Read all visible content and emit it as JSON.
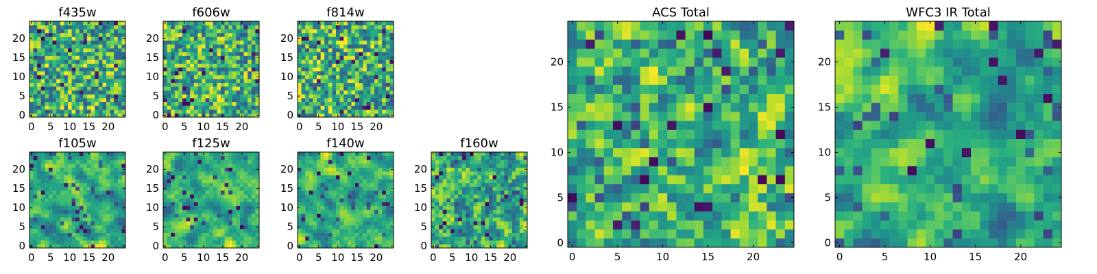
{
  "figure": {
    "background": "#ffffff"
  },
  "chart_data": [
    {
      "id": "f435w",
      "type": "heatmap",
      "title": "f435w",
      "grid_size": [
        25,
        25
      ],
      "xlim": [
        0,
        24
      ],
      "ylim": [
        0,
        24
      ],
      "xticks": [
        0,
        5,
        10,
        15,
        20
      ],
      "yticks": [
        0,
        5,
        10,
        15,
        20
      ],
      "origin": "lower",
      "colormap": "viridis",
      "value_range": [
        0,
        1
      ],
      "seed": 435,
      "smoothness": 0.05,
      "values": []
    },
    {
      "id": "f606w",
      "type": "heatmap",
      "title": "f606w",
      "grid_size": [
        25,
        25
      ],
      "xlim": [
        0,
        24
      ],
      "ylim": [
        0,
        24
      ],
      "xticks": [
        0,
        5,
        10,
        15,
        20
      ],
      "yticks": [
        0,
        5,
        10,
        15,
        20
      ],
      "origin": "lower",
      "colormap": "viridis",
      "value_range": [
        0,
        1
      ],
      "seed": 606,
      "smoothness": 0.15,
      "values": []
    },
    {
      "id": "f814w",
      "type": "heatmap",
      "title": "f814w",
      "grid_size": [
        25,
        25
      ],
      "xlim": [
        0,
        24
      ],
      "ylim": [
        0,
        24
      ],
      "xticks": [
        0,
        5,
        10,
        15,
        20
      ],
      "yticks": [
        0,
        5,
        10,
        15,
        20
      ],
      "origin": "lower",
      "colormap": "viridis",
      "value_range": [
        0,
        1
      ],
      "seed": 814,
      "smoothness": 0.15,
      "values": []
    },
    {
      "id": "f105w",
      "type": "heatmap",
      "title": "f105w",
      "grid_size": [
        25,
        25
      ],
      "xlim": [
        0,
        24
      ],
      "ylim": [
        0,
        24
      ],
      "xticks": [
        0,
        5,
        10,
        15,
        20
      ],
      "yticks": [
        0,
        5,
        10,
        15,
        20
      ],
      "origin": "lower",
      "colormap": "viridis",
      "value_range": [
        0,
        1
      ],
      "seed": 105,
      "smoothness": 0.55,
      "values": []
    },
    {
      "id": "f125w",
      "type": "heatmap",
      "title": "f125w",
      "grid_size": [
        25,
        25
      ],
      "xlim": [
        0,
        24
      ],
      "ylim": [
        0,
        24
      ],
      "xticks": [
        0,
        5,
        10,
        15,
        20
      ],
      "yticks": [
        0,
        5,
        10,
        15,
        20
      ],
      "origin": "lower",
      "colormap": "viridis",
      "value_range": [
        0,
        1
      ],
      "seed": 125,
      "smoothness": 0.55,
      "values": []
    },
    {
      "id": "f140w",
      "type": "heatmap",
      "title": "f140w",
      "grid_size": [
        25,
        25
      ],
      "xlim": [
        0,
        24
      ],
      "ylim": [
        0,
        24
      ],
      "xticks": [
        0,
        5,
        10,
        15,
        20
      ],
      "yticks": [
        0,
        5,
        10,
        15,
        20
      ],
      "origin": "lower",
      "colormap": "viridis",
      "value_range": [
        0,
        1
      ],
      "seed": 140,
      "smoothness": 0.5,
      "values": []
    },
    {
      "id": "f160w",
      "type": "heatmap",
      "title": "f160w",
      "grid_size": [
        25,
        25
      ],
      "xlim": [
        0,
        24
      ],
      "ylim": [
        0,
        24
      ],
      "xticks": [
        0,
        5,
        10,
        15,
        20
      ],
      "yticks": [
        0,
        5,
        10,
        15,
        20
      ],
      "origin": "lower",
      "colormap": "viridis",
      "value_range": [
        0,
        1
      ],
      "seed": 160,
      "smoothness": 0.45,
      "values": []
    },
    {
      "id": "acs-total",
      "type": "heatmap",
      "title": "ACS Total",
      "grid_size": [
        25,
        25
      ],
      "xlim": [
        0,
        24
      ],
      "ylim": [
        0,
        24
      ],
      "xticks": [
        0,
        5,
        10,
        15,
        20
      ],
      "yticks": [
        0,
        5,
        10,
        15,
        20
      ],
      "origin": "lower",
      "colormap": "viridis",
      "value_range": [
        0,
        1
      ],
      "seed": 2001,
      "smoothness": 0.3,
      "values": []
    },
    {
      "id": "wfc3-ir-total",
      "type": "heatmap",
      "title": "WFC3 IR Total",
      "grid_size": [
        25,
        25
      ],
      "xlim": [
        0,
        24
      ],
      "ylim": [
        0,
        24
      ],
      "xticks": [
        0,
        5,
        10,
        15,
        20
      ],
      "yticks": [
        0,
        5,
        10,
        15,
        20
      ],
      "origin": "lower",
      "colormap": "viridis",
      "value_range": [
        0,
        1
      ],
      "seed": 3001,
      "smoothness": 0.6,
      "values": []
    }
  ]
}
